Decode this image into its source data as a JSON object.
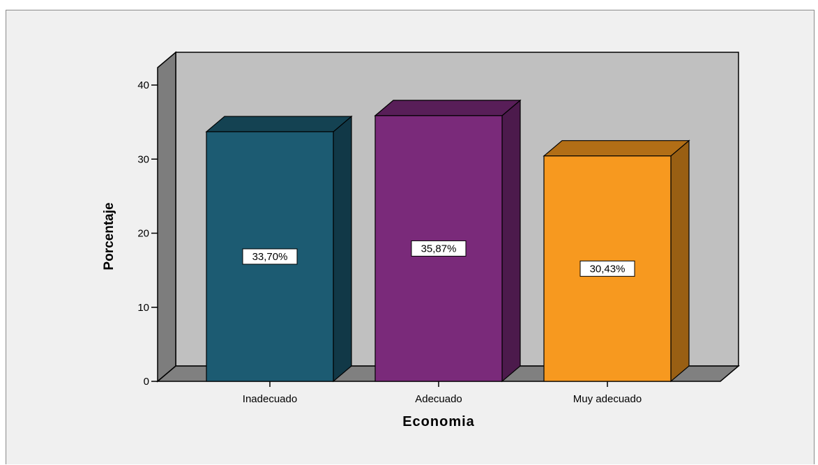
{
  "chart_data": {
    "type": "bar",
    "style": "3d",
    "categories": [
      "Inadecuado",
      "Adecuado",
      "Muy adecuado"
    ],
    "values": [
      33.7,
      35.87,
      30.43
    ],
    "data_labels": [
      "33,70%",
      "35,87%",
      "30,43%"
    ],
    "colors": [
      "#1c5b72",
      "#7a2a7a",
      "#f7991f"
    ],
    "xlabel": "Economia",
    "ylabel": "Porcentaje",
    "ylim": [
      0,
      42
    ],
    "yticks": [
      0,
      10,
      20,
      30,
      40
    ],
    "grid": false,
    "legend": "none"
  }
}
